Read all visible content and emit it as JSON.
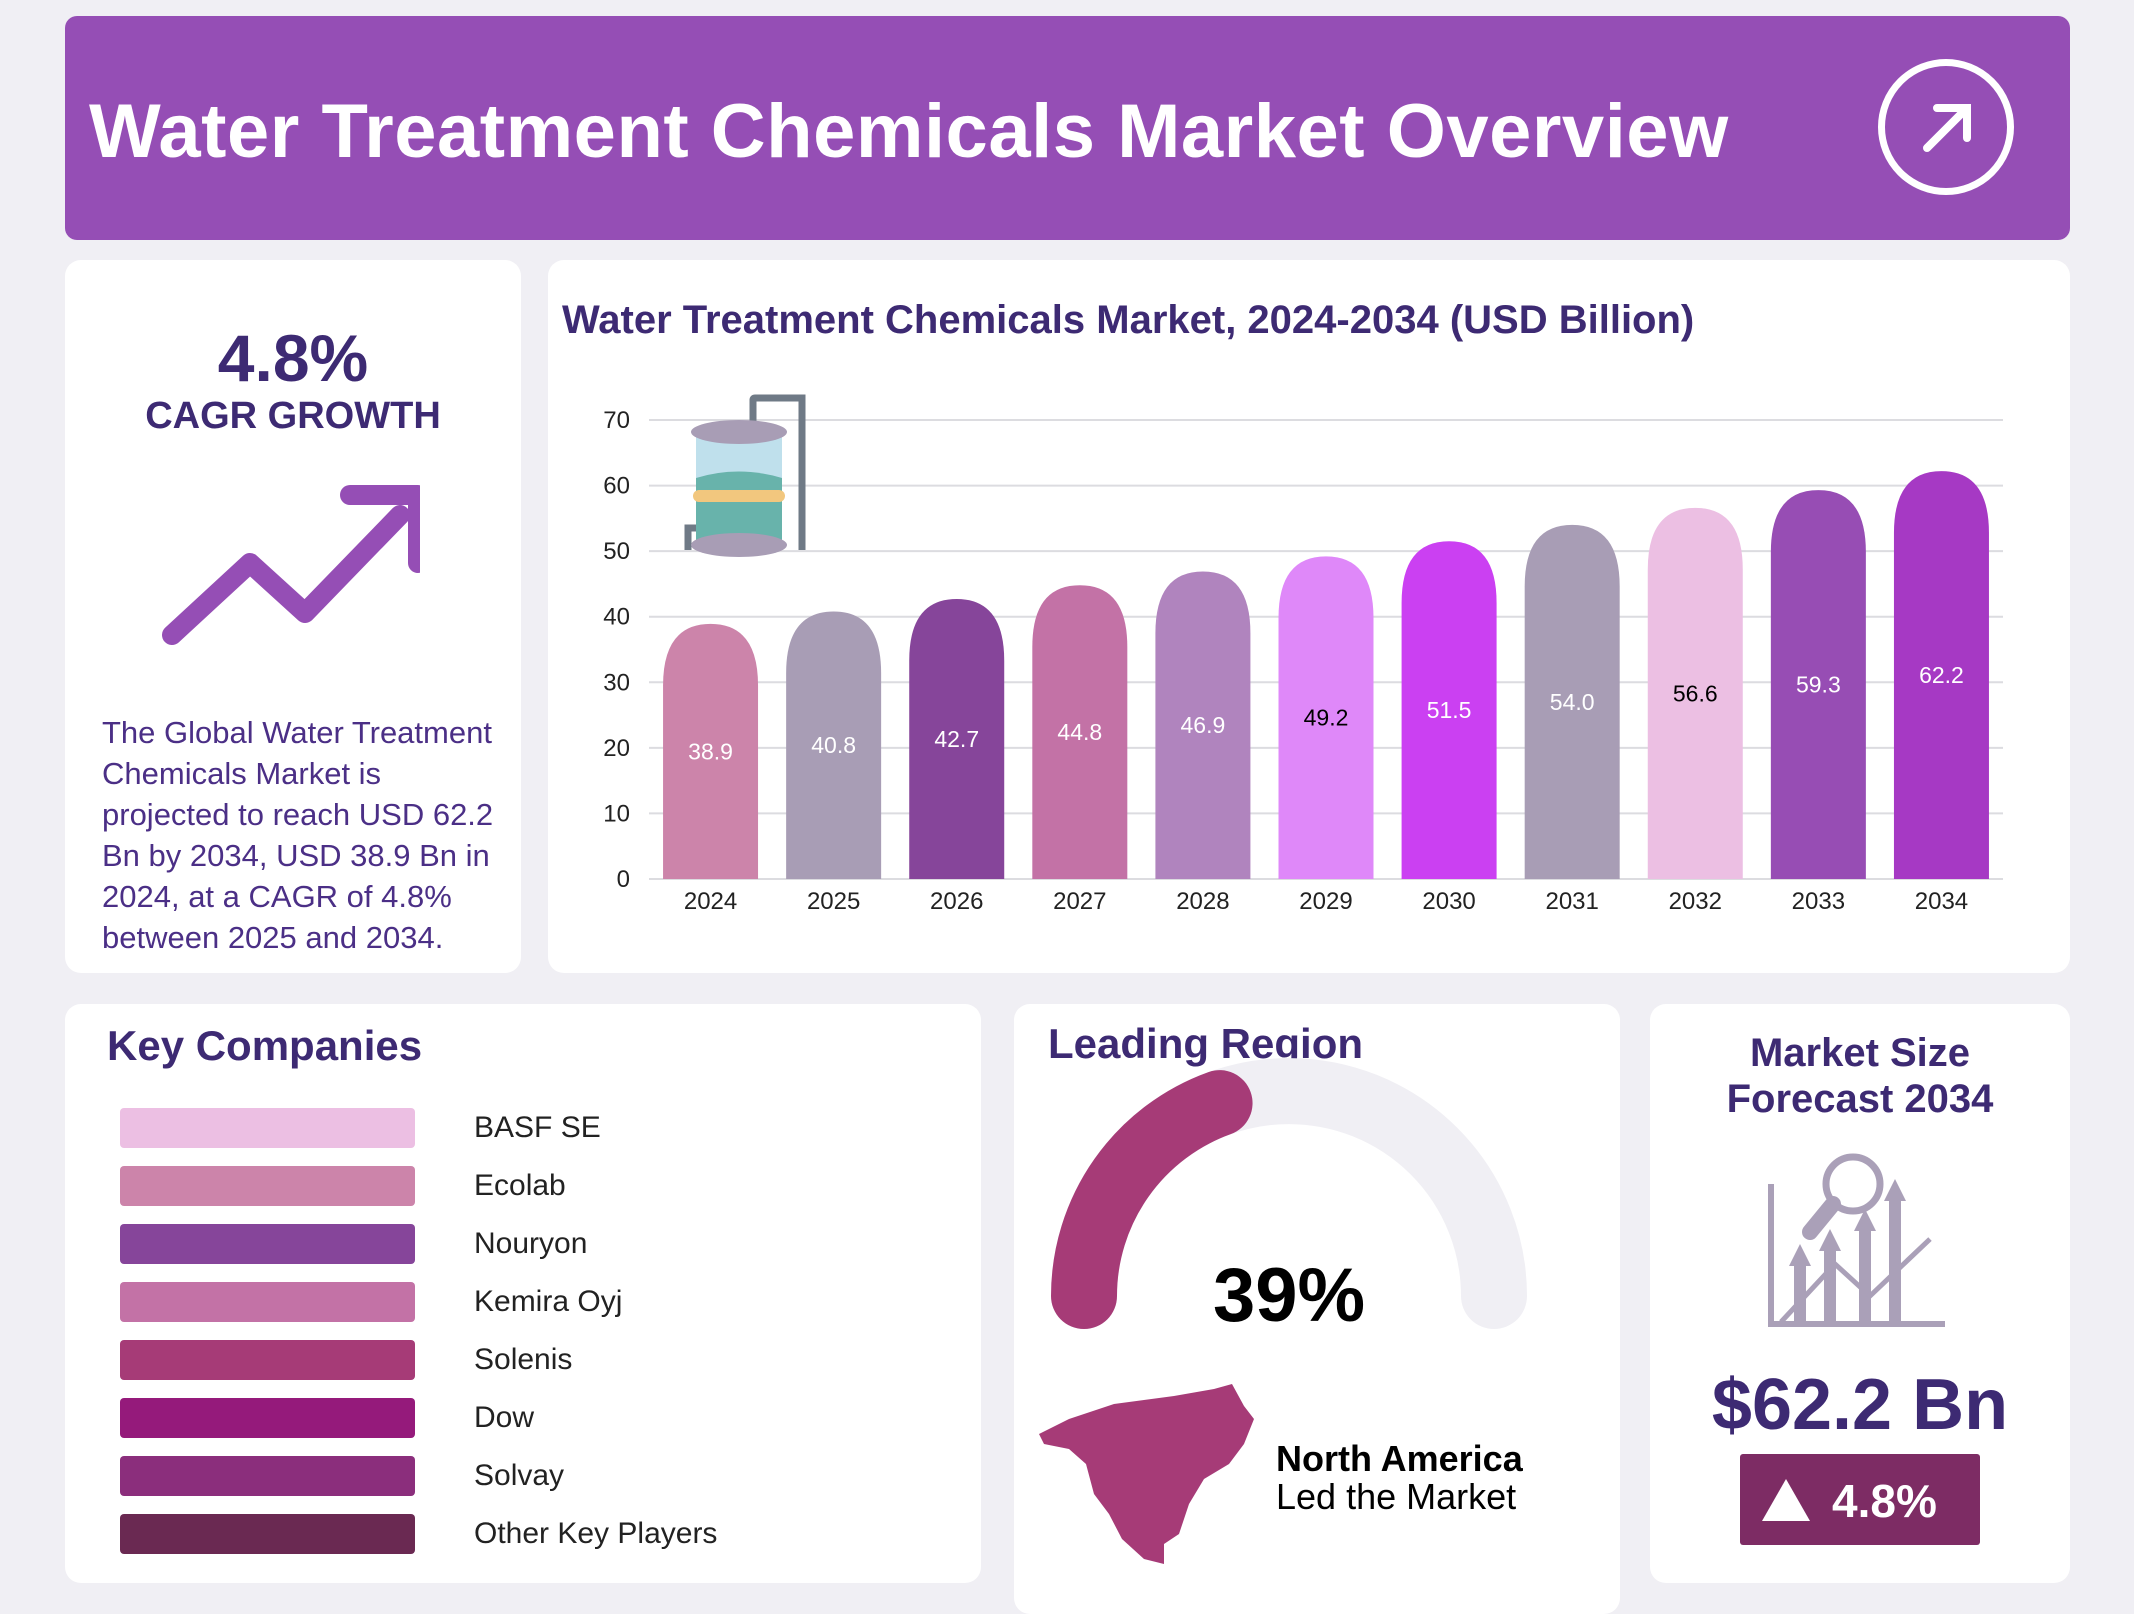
{
  "header": {
    "title": "Water Treatment Chemicals Market Overview",
    "icon": "arrow-up-right-circle-icon"
  },
  "summary": {
    "cagr_value": "4.8%",
    "cagr_label": "CAGR GROWTH",
    "icon": "trend-up-arrow-icon",
    "description": "The Global Water Treatment Chemicals Market is projected to reach USD 62.2 Bn by 2034, USD 38.9 Bn in 2024, at a CAGR of 4.8% between 2025 and 2034."
  },
  "chart_data": {
    "type": "bar",
    "title": "Water Treatment Chemicals Market, 2024-2034 (USD Billion)",
    "categories": [
      "2024",
      "2025",
      "2026",
      "2027",
      "2028",
      "2029",
      "2030",
      "2031",
      "2032",
      "2033",
      "2034"
    ],
    "values": [
      38.9,
      40.8,
      42.7,
      44.8,
      46.9,
      49.2,
      51.5,
      54.0,
      56.6,
      59.3,
      62.2
    ],
    "labels": [
      "38.9",
      "40.8",
      "42.7",
      "44.8",
      "46.9",
      "49.2",
      "51.5",
      "54.0",
      "56.6",
      "59.3",
      "62.2"
    ],
    "colors": [
      "#cc84aa",
      "#a89db5",
      "#86459a",
      "#c372a6",
      "#b084be",
      "#df88f9",
      "#cb40f2",
      "#a89db5",
      "#ecbfe3",
      "#974db4",
      "#a639c4"
    ],
    "label_colors": [
      "#fff",
      "#fff",
      "#fff",
      "#fff",
      "#fff",
      "#000",
      "#fff",
      "#fff",
      "#000",
      "#fff",
      "#fff"
    ],
    "yticks": [
      "0",
      "10",
      "20",
      "30",
      "40",
      "50",
      "60",
      "70"
    ],
    "ylim": [
      0,
      70
    ],
    "grid": true,
    "xlabel": "",
    "ylabel": ""
  },
  "companies": {
    "title": "Key Companies",
    "items": [
      {
        "name": "BASF SE",
        "color": "#ecbfe3"
      },
      {
        "name": "Ecolab",
        "color": "#cc84aa"
      },
      {
        "name": "Nouryon",
        "color": "#86459a"
      },
      {
        "name": "Kemira Oyj",
        "color": "#c372a6"
      },
      {
        "name": "Solenis",
        "color": "#a63b77"
      },
      {
        "name": "Dow",
        "color": "#951a7b"
      },
      {
        "name": "Solvay",
        "color": "#8b2e7c"
      },
      {
        "name": "Other Key Players",
        "color": "#6a2952"
      }
    ]
  },
  "region": {
    "title": "Leading Region",
    "percent": "39%",
    "share": 39,
    "name": "North America",
    "subtitle": "Led the Market",
    "color": "#a63b77"
  },
  "forecast": {
    "title_line1": "Market Size",
    "title_line2": "Forecast 2034",
    "value": "$62.2 Bn",
    "badge": "4.8%",
    "badge_color": "#7d2c64",
    "icon": "market-analysis-chart-icon"
  }
}
